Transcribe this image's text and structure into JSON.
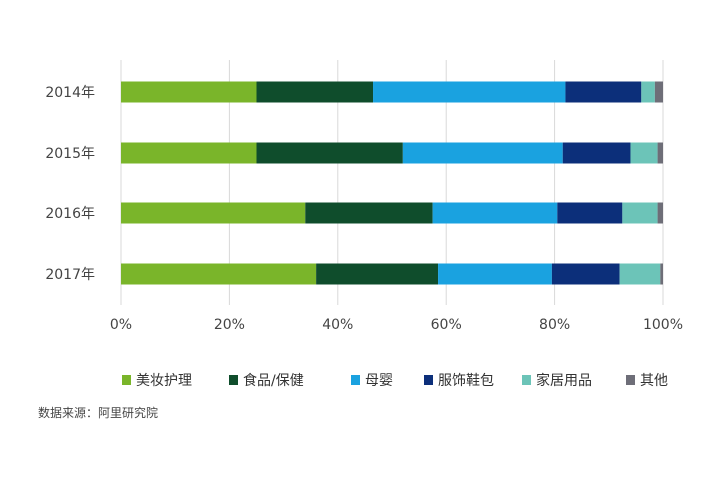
{
  "chart_data": {
    "type": "bar",
    "orientation": "horizontal",
    "stacked": true,
    "categories": [
      "2014年",
      "2015年",
      "2016年",
      "2017年"
    ],
    "series": [
      {
        "name": "美妆护理",
        "color": "#7ab52a",
        "values": [
          25,
          25,
          34,
          36
        ]
      },
      {
        "name": "食品/保健",
        "color": "#0f4d2c",
        "values": [
          21.5,
          27,
          23.5,
          22.5
        ]
      },
      {
        "name": "母婴",
        "color": "#1aa2e0",
        "values": [
          35.5,
          29.5,
          23,
          21
        ]
      },
      {
        "name": "服饰鞋包",
        "color": "#0c2f7a",
        "values": [
          14,
          12.5,
          12,
          12.5
        ]
      },
      {
        "name": "家居用品",
        "color": "#6cc4b8",
        "values": [
          2.5,
          5,
          6.5,
          7.5
        ]
      },
      {
        "name": "其他",
        "color": "#6e6e78",
        "values": [
          1.5,
          1,
          1,
          0.5
        ]
      }
    ],
    "xlim": [
      0,
      100
    ],
    "x_ticks": [
      "0%",
      "20%",
      "40%",
      "60%",
      "80%",
      "100%"
    ],
    "grid": true,
    "legend_position": "bottom"
  },
  "source_note": "数据来源：阿里研究院"
}
